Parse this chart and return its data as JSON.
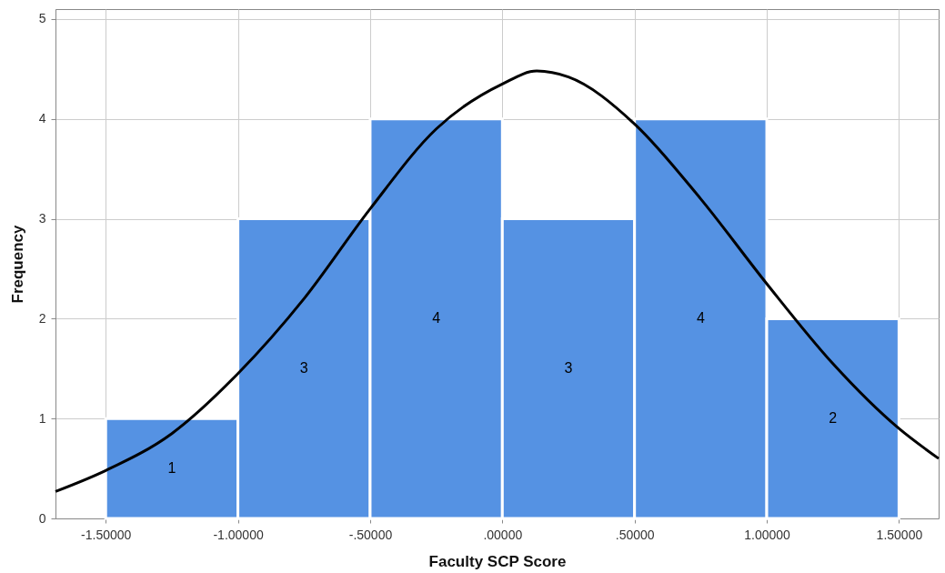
{
  "chart_data": {
    "type": "histogram",
    "xlabel": "Faculty SCP Score",
    "ylabel": "Frequency",
    "bins": [
      -1.5,
      -1.0,
      -0.5,
      0,
      0.5,
      1.0,
      1.5
    ],
    "series": [
      {
        "color": "#5592e3",
        "values": [
          1,
          3,
          4,
          3,
          4,
          2
        ],
        "value_labels": [
          "1",
          "3",
          "4",
          "3",
          "4",
          "2"
        ]
      },
      {
        "type": "line",
        "color": "#000000",
        "x": [
          -1.69,
          -1.5,
          -1.25,
          -1.0,
          -0.75,
          -0.5,
          -0.25,
          0,
          0.13,
          0.25,
          0.5,
          0.75,
          1.0,
          1.25,
          1.5,
          1.65
        ],
        "values": [
          0.27,
          0.48,
          0.85,
          1.45,
          2.2,
          3.1,
          3.9,
          4.35,
          4.48,
          4.42,
          3.95,
          3.2,
          2.35,
          1.55,
          0.9,
          0.6
        ]
      }
    ],
    "xlim": [
      -1.69,
      1.65
    ],
    "ylim": [
      0,
      5.1
    ],
    "xticks": [
      {
        "value": -1.5,
        "label": "-1.50000"
      },
      {
        "value": -1.0,
        "label": "-1.00000"
      },
      {
        "value": -0.5,
        "label": "-.50000"
      },
      {
        "value": 0,
        "label": ".00000"
      },
      {
        "value": 0.5,
        "label": ".50000"
      },
      {
        "value": 1.0,
        "label": "1.00000"
      },
      {
        "value": 1.5,
        "label": "1.50000"
      }
    ],
    "yticks": [
      0,
      1,
      2,
      3,
      4,
      5
    ],
    "grid": true
  }
}
